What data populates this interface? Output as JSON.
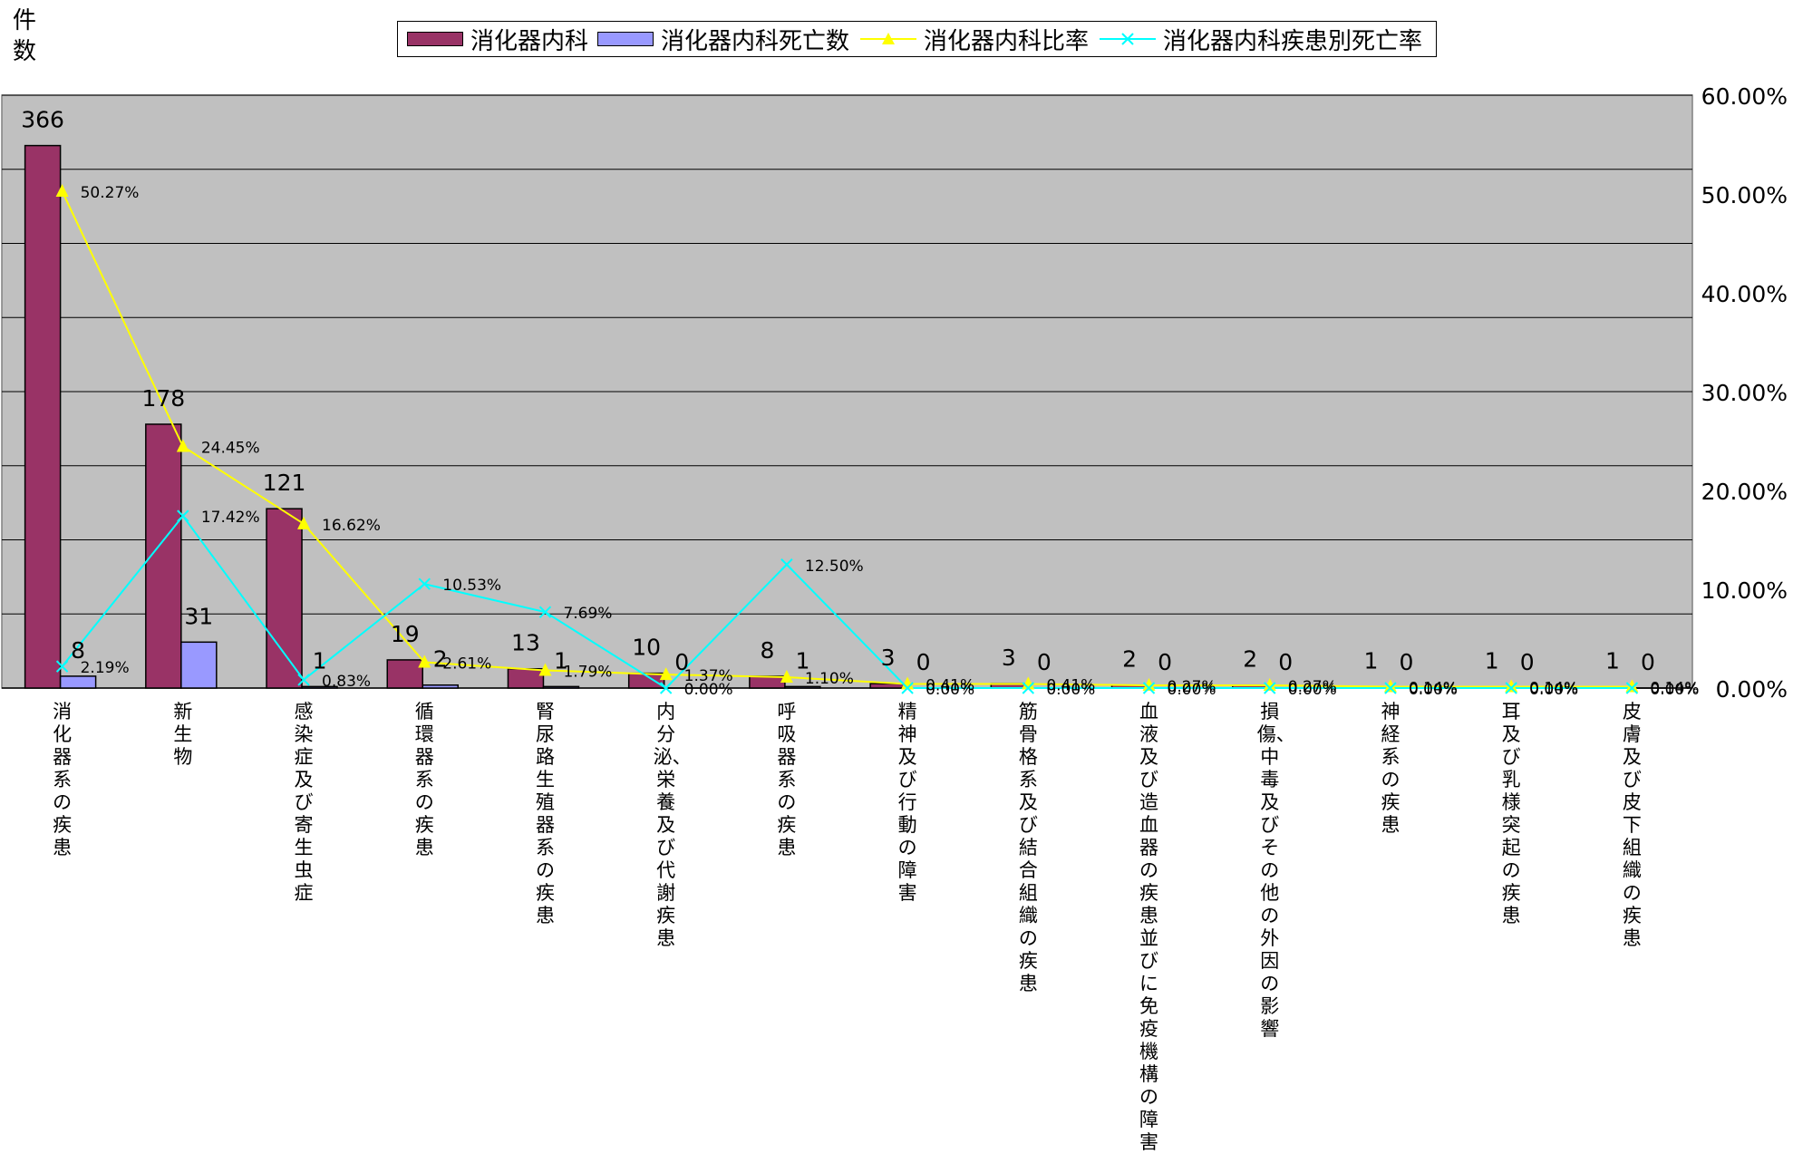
{
  "chart_data": {
    "type": "bar",
    "ylabel": "件数",
    "categories": [
      "消化器系の疾患",
      "新生物",
      "感染症及び寄生虫症",
      "循環器系の疾患",
      "腎尿路生殖器系の疾患",
      "内分泌、栄養及び代謝疾患",
      "呼吸器系の疾患",
      "精神及び行動の障害",
      "筋骨格系及び結合組織の疾患",
      "血液及び造血器の疾患並びに免疫機構の障害",
      "損傷、中毒及びその他の外因の影響",
      "神経系の疾患",
      "耳及び乳様突起の疾患",
      "皮膚及び皮下組織の疾患"
    ],
    "series": [
      {
        "name": "消化器内科",
        "type": "bar",
        "axis": "left",
        "color": "#993366",
        "values": [
          366,
          178,
          121,
          19,
          13,
          10,
          8,
          3,
          3,
          2,
          2,
          1,
          1,
          1
        ],
        "labels": [
          "366",
          "178",
          "121",
          "19",
          "13",
          "10",
          "8",
          "3",
          "3",
          "2",
          "2",
          "1",
          "1",
          "1"
        ]
      },
      {
        "name": "消化器内科死亡数",
        "type": "bar",
        "axis": "left",
        "color": "#9999FF",
        "values": [
          8,
          31,
          1,
          2,
          1,
          0,
          1,
          0,
          0,
          0,
          0,
          0,
          0,
          0
        ],
        "labels": [
          "8",
          "31",
          "1",
          "2",
          "1",
          "0",
          "1",
          "0",
          "0",
          "0",
          "0",
          "0",
          "0",
          "0"
        ]
      },
      {
        "name": "消化器内科比率",
        "type": "line",
        "axis": "right",
        "color": "#FFFF00",
        "marker": "triangle",
        "values": [
          50.27,
          24.45,
          16.62,
          2.61,
          1.79,
          1.37,
          1.1,
          0.41,
          0.41,
          0.27,
          0.27,
          0.14,
          0.14,
          0.14
        ],
        "labels": [
          "50.27%",
          "24.45%",
          "16.62%",
          "2.61%",
          "1.79%",
          "1.37%",
          "1.10%",
          "0.41%",
          "0.41%",
          "0.27%",
          "0.27%",
          "0.14%",
          "0.14%",
          "0.14%"
        ]
      },
      {
        "name": "消化器内科疾患別死亡率",
        "type": "line",
        "axis": "right",
        "color": "#00FFFF",
        "marker": "x",
        "values": [
          2.19,
          17.42,
          0.83,
          10.53,
          7.69,
          0.0,
          12.5,
          0.0,
          0.0,
          0.0,
          0.0,
          0.0,
          0.0,
          0.0
        ],
        "labels": [
          "2.19%",
          "17.42%",
          "0.83%",
          "10.53%",
          "7.69%",
          "0.00%",
          "12.50%",
          "0.00%",
          "0.00%",
          "0.00%",
          "0.00%",
          "0.00%",
          "0.00%",
          "0.00%"
        ]
      }
    ],
    "left_axis": {
      "min": 0,
      "max": 400,
      "step": 50,
      "tick_labels_visible": false
    },
    "right_axis": {
      "min": 0,
      "max": 60,
      "step": 10,
      "ticks": [
        "0.00%",
        "10.00%",
        "20.00%",
        "30.00%",
        "40.00%",
        "50.00%",
        "60.00%"
      ]
    },
    "plot_background": "#C0C0C0",
    "grid": true,
    "legend_position": "top"
  }
}
